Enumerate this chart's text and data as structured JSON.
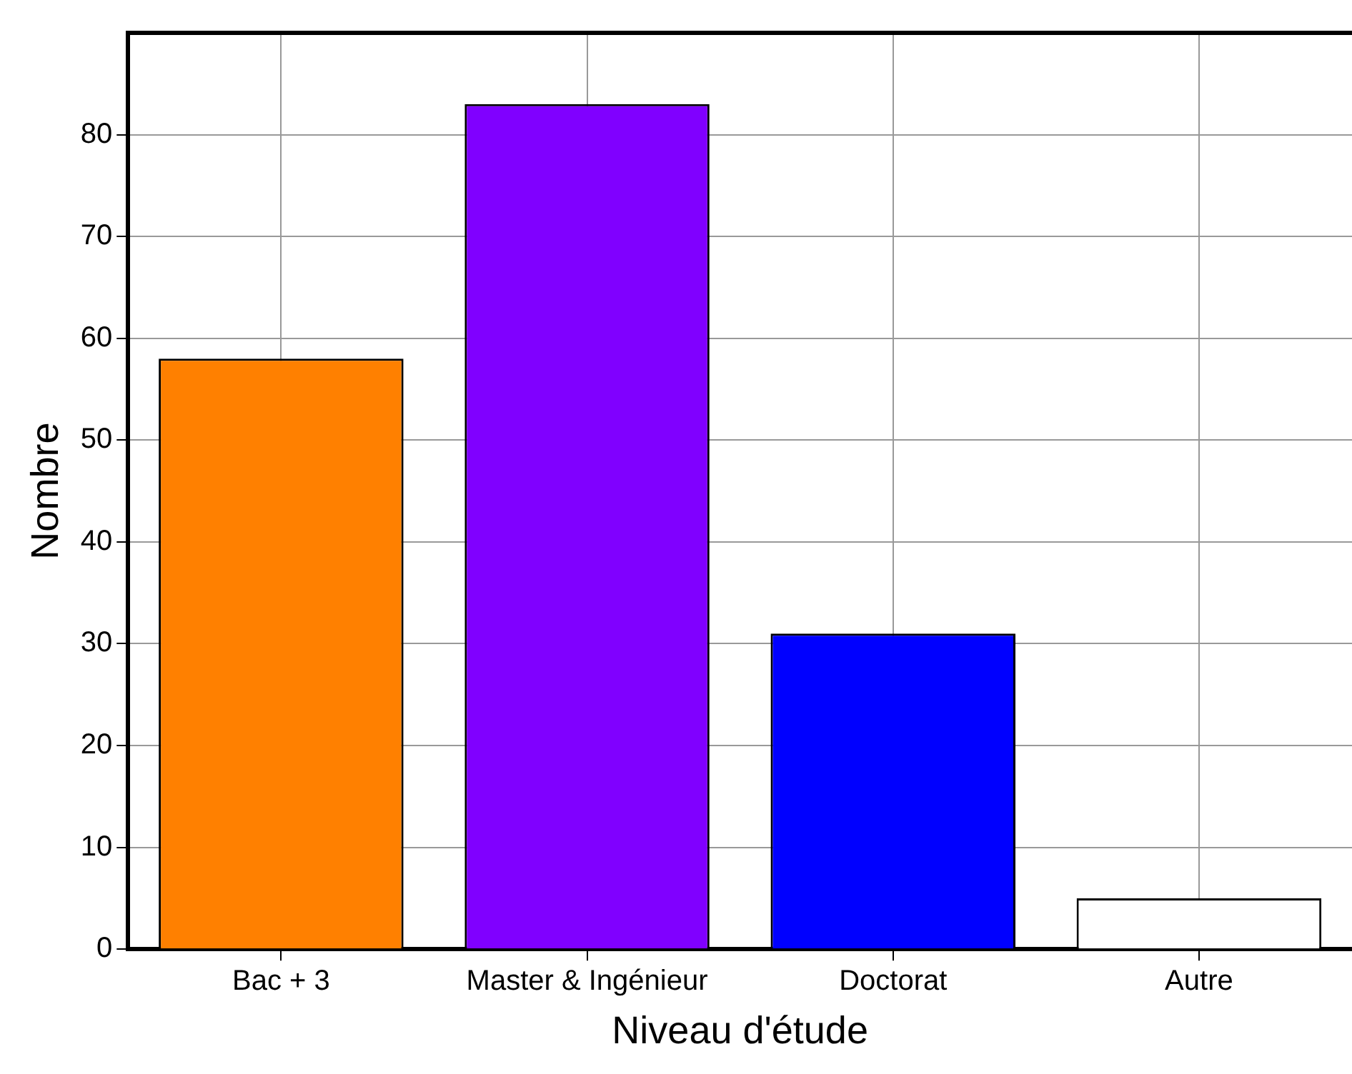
{
  "chart_data": {
    "type": "bar",
    "xlabel": "Niveau d'étude",
    "ylabel": "Nombre",
    "categories": [
      "Bac + 3",
      "Master & Ingénieur",
      "Doctorat",
      "Autre"
    ],
    "values": [
      58,
      83,
      31,
      5
    ],
    "colors": [
      "#ff8000",
      "#8000ff",
      "#0000ff",
      "#ffffff"
    ],
    "ylim": [
      0,
      90
    ],
    "yticks": [
      0,
      10,
      20,
      30,
      40,
      50,
      60,
      70,
      80
    ],
    "grid": true,
    "legend": false
  }
}
